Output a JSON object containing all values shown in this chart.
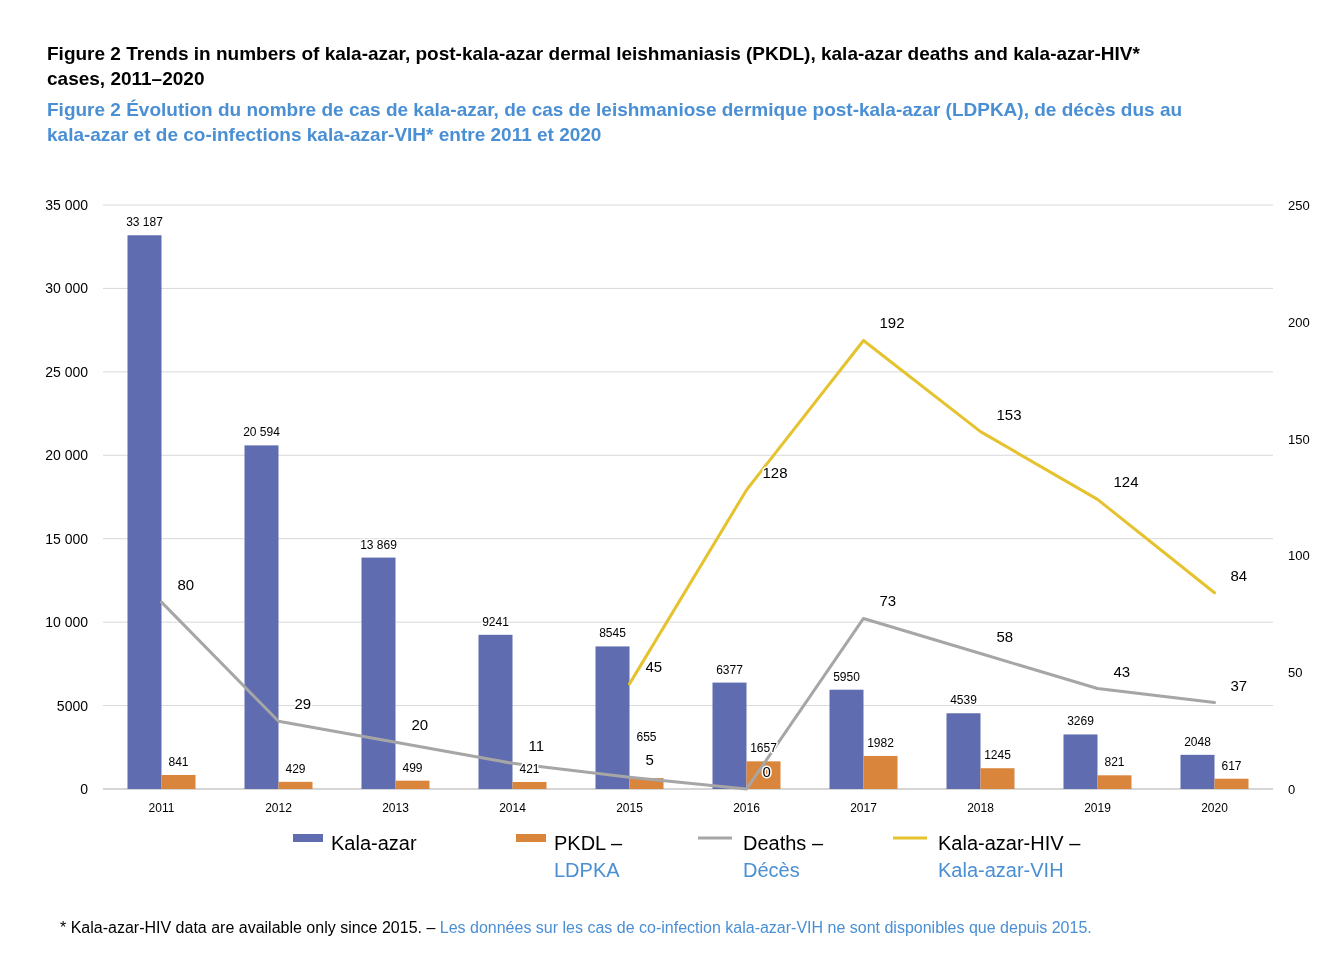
{
  "chart_data": {
    "type": "bar",
    "title": "Figure 2 Trends in numbers of kala-azar, post-kala-azar dermal leishmaniasis (PKDL), kala-azar deaths and kala-azar-HIV* cases, 2011–2020",
    "subtitle": "Figure 2 Évolution du nombre de cas de kala-azar, de cas de leishmaniose dermique post-kala-azar (LDPKA), de décès dus au kala-azar et de co-infections kala-azar-VIH* entre 2011 et 2020",
    "categories": [
      "2011",
      "2012",
      "2013",
      "2014",
      "2015",
      "2016",
      "2017",
      "2018",
      "2019",
      "2020"
    ],
    "series": [
      {
        "name": "Kala-azar",
        "color": "#5f6caf",
        "values": [
          33187,
          20594,
          13869,
          9241,
          8545,
          6377,
          5950,
          4539,
          3269,
          2048
        ],
        "value_labels": [
          "33 187",
          "20 594",
          "13 869",
          "9241",
          "8545",
          "6377",
          "5950",
          "4539",
          "3269",
          "2048"
        ]
      },
      {
        "name": "PKDL – LDPKA",
        "color": "#d9853b",
        "values": [
          841,
          429,
          499,
          421,
          655,
          1657,
          1982,
          1245,
          821,
          617
        ]
      },
      {
        "name": "Deaths – Décès",
        "type": "line",
        "axis": "y2",
        "color": "#a6a6a6",
        "values": [
          80,
          29,
          20,
          11,
          5,
          0,
          73,
          58,
          43,
          37
        ]
      },
      {
        "name": "Kala-azar-HIV – Kala-azar-VIH",
        "type": "line",
        "axis": "y2",
        "color": "#e5c22e",
        "values": [
          null,
          null,
          null,
          null,
          45,
          128,
          192,
          153,
          124,
          84
        ]
      }
    ],
    "ylim": [
      0,
      35000
    ],
    "yticks": [
      0,
      {
        "value": 5000,
        "label": "5000"
      },
      {
        "value": 10000,
        "label": "10 000"
      },
      {
        "value": 15000,
        "label": "15 000"
      },
      {
        "value": 20000,
        "label": "20 000"
      },
      {
        "value": 25000,
        "label": "25 000"
      },
      {
        "value": 30000,
        "label": "30 000"
      },
      {
        "value": 35000,
        "label": "35 000"
      }
    ],
    "y2lim": [
      0,
      250
    ],
    "y2ticks": [
      0,
      50,
      100,
      150,
      200,
      250
    ],
    "grid": "y",
    "legend": "bottom",
    "data_labels": true,
    "marker": "none",
    "line_style": "solid",
    "annotations": [
      "* Kala-azar-HIV data are available only since 2015. – Les données sur les cas de co-infection kala-azar-VIH ne sont disponibles que depuis 2015."
    ]
  }
}
